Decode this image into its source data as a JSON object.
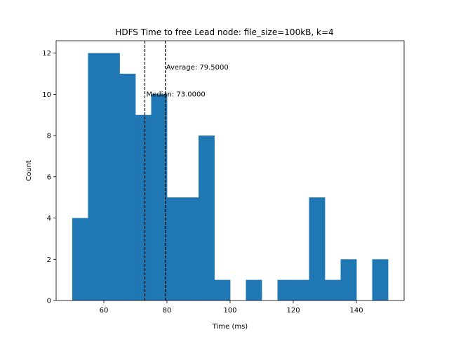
{
  "chart_data": {
    "type": "bar",
    "title": "HDFS Time to free Lead node: file_size=100kB, k=4",
    "xlabel": "Time (ms)",
    "ylabel": "Count",
    "bin_edges": [
      50,
      55,
      60,
      65,
      70,
      75,
      80,
      85,
      90,
      95,
      100,
      105,
      110,
      115,
      120,
      125,
      130,
      135,
      140,
      145,
      150
    ],
    "values": [
      4,
      12,
      12,
      11,
      9,
      10,
      5,
      5,
      8,
      1,
      0,
      1,
      0,
      1,
      1,
      5,
      1,
      2,
      0,
      2
    ],
    "xlim": [
      44.9,
      155.1
    ],
    "ylim": [
      0,
      12.6
    ],
    "xticks": [
      60,
      80,
      100,
      120,
      140
    ],
    "yticks": [
      0,
      2,
      4,
      6,
      8,
      10,
      12
    ],
    "bar_color": "#1f77b4",
    "median": {
      "value": 73.0,
      "label": "Median: 73.0000"
    },
    "average": {
      "value": 79.5,
      "label": "Average: 79.5000"
    },
    "grid": false
  }
}
